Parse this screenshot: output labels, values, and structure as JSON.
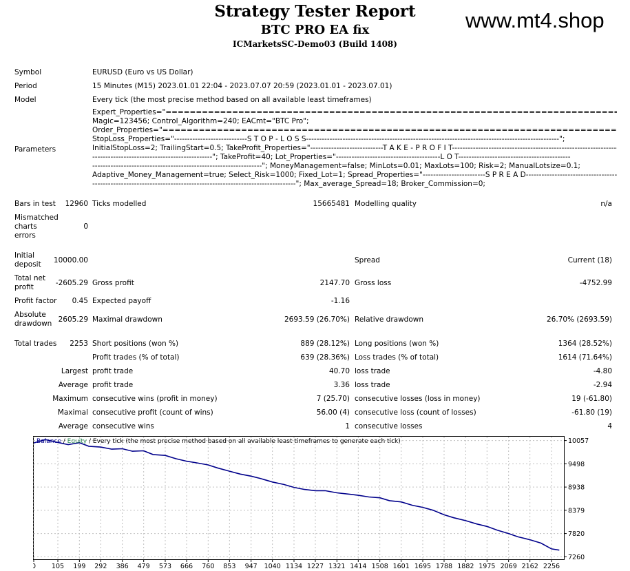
{
  "header": {
    "title": "Strategy Tester Report",
    "ea_name": "BTC PRO EA fix",
    "server": "ICMarketsSC-Demo03 (Build 1408)",
    "watermark": "www.mt4.shop"
  },
  "info": {
    "symbol_label": "Symbol",
    "symbol_value": "EURUSD (Euro vs US Dollar)",
    "period_label": "Period",
    "period_value": "15 Minutes (M15) 2023.01.01 22:04 - 2023.07.07 20:59 (2023.01.01 - 2023.07.01)",
    "model_label": "Model",
    "model_value": "Every tick (the most precise method based on all available least timeframes)",
    "parameters_label": "Parameters",
    "parameters_lines": [
      "Expert_Properties=\"=================================================================================================\";",
      "Magic=123456; Control_Algorithm=240; EACmt=\"BTC Pro\";",
      "Order_Properties=\"=================================================================================================\";",
      "StopLoss_Properties=\"----------------------------S T O P - L O S S-------------------------------------------------------------------------------------------------\";",
      "InitialStopLoss=2; TrailingStart=0.5; TakeProfit_Properties=\"----------------------------T A K E - P R O F I T----------------------------------------------------------------",
      "----------------------------------------------\"; TakeProfit=40; Lot_Properties=\"----------------------------------------L O T-------------------------------------------",
      "-----------------------------------------------------------------\"; MoneyManagement=false; MinLots=0.01; MaxLots=100; Risk=2; ManualLotsize=0.1;",
      "Adaptive_Money_Management=true; Select_Risk=1000; Fixed_Lot=1; Spread_Properties=\"------------------------S P R E A D-------------------------------------------",
      "------------------------------------------------------------------------------\"; Max_average_Spread=18; Broker_Commission=0;"
    ]
  },
  "stats": {
    "bars_label": "Bars in test",
    "bars_value": "12960",
    "ticks_label": "Ticks modelled",
    "ticks_value": "15665481",
    "quality_label": "Modelling quality",
    "quality_value": "n/a",
    "mismatch_l1": "Mismatched",
    "mismatch_l2": "charts",
    "mismatch_l3": "errors",
    "mismatch_value": "0",
    "deposit_l1": "Initial",
    "deposit_l2": "deposit",
    "deposit_value": "10000.00",
    "spread_label": "Spread",
    "spread_value": "Current (18)",
    "netprofit_l1": "Total net",
    "netprofit_l2": "profit",
    "netprofit_value": "-2605.29",
    "grossprofit_label": "Gross profit",
    "grossprofit_value": "2147.70",
    "grossloss_label": "Gross loss",
    "grossloss_value": "-4752.99",
    "pf_label": "Profit factor",
    "pf_value": "0.45",
    "payoff_label": "Expected payoff",
    "payoff_value": "-1.16",
    "absdd_l1": "Absolute",
    "absdd_l2": "drawdown",
    "absdd_value": "2605.29",
    "maxdd_label": "Maximal drawdown",
    "maxdd_value": "2693.59 (26.70%)",
    "reldd_label": "Relative drawdown",
    "reldd_value": "26.70% (2693.59)",
    "trades_label": "Total trades",
    "trades_value": "2253",
    "short_label": "Short positions (won %)",
    "short_value": "889 (28.12%)",
    "long_label": "Long positions (won %)",
    "long_value": "1364 (28.52%)",
    "ptrades_label": "Profit trades (% of total)",
    "ptrades_value": "639 (28.36%)",
    "ltrades_label": "Loss trades (% of total)",
    "ltrades_value": "1614 (71.64%)",
    "largest_label": "Largest",
    "largest_pt_label": "profit trade",
    "largest_pt_value": "40.70",
    "largest_lt_label": "loss trade",
    "largest_lt_value": "-4.80",
    "average_label": "Average",
    "average_pt_label": "profit trade",
    "average_pt_value": "3.36",
    "average_lt_label": "loss trade",
    "average_lt_value": "-2.94",
    "maximum_label": "Maximum",
    "maxcw_label": "consecutive wins (profit in money)",
    "maxcw_value": "7 (25.70)",
    "maxcl_label": "consecutive losses (loss in money)",
    "maxcl_value": "19 (-61.80)",
    "maximal_label": "Maximal",
    "maxcp_label": "consecutive profit (count of wins)",
    "maxcp_value": "56.00 (4)",
    "maxclc_label": "consecutive loss (count of losses)",
    "maxclc_value": "-61.80 (19)",
    "average2_label": "Average",
    "avgcw_label": "consecutive wins",
    "avgcw_value": "1",
    "avgcl_label": "consecutive losses",
    "avgcl_value": "4"
  },
  "chart_data": {
    "type": "line",
    "legend_balance": "Balance",
    "legend_sep": " / ",
    "legend_equity": "Equity",
    "caption": " / Every tick (the most precise method based on all available least timeframes to generate each tick)",
    "x_ticks": [
      "0",
      "105",
      "199",
      "292",
      "386",
      "479",
      "573",
      "666",
      "760",
      "853",
      "947",
      "1040",
      "1134",
      "1227",
      "1321",
      "1414",
      "1508",
      "1601",
      "1695",
      "1788",
      "1882",
      "1975",
      "2069",
      "2162",
      "2256"
    ],
    "y_ticks": [
      "10057",
      "9498",
      "8938",
      "8379",
      "7820",
      "7260"
    ],
    "xlim": [
      0,
      2310
    ],
    "ylim": [
      7200,
      10150
    ],
    "grid": true,
    "colors": {
      "balance": "#00008b",
      "equity": "#2e8b57",
      "grid": "#c0c0c0"
    },
    "series": [
      {
        "name": "Balance",
        "x": [
          0,
          50,
          105,
          150,
          199,
          240,
          292,
          340,
          386,
          430,
          479,
          520,
          573,
          620,
          666,
          710,
          760,
          800,
          853,
          900,
          947,
          990,
          1040,
          1090,
          1134,
          1180,
          1227,
          1270,
          1321,
          1370,
          1414,
          1460,
          1508,
          1550,
          1601,
          1650,
          1695,
          1740,
          1788,
          1830,
          1882,
          1930,
          1975,
          2020,
          2069,
          2110,
          2162,
          2210,
          2256,
          2290
        ],
        "y": [
          10000,
          10080,
          10010,
          9960,
          10005,
          9920,
          9900,
          9850,
          9860,
          9800,
          9810,
          9720,
          9700,
          9620,
          9560,
          9520,
          9470,
          9400,
          9320,
          9250,
          9200,
          9140,
          9060,
          9000,
          8930,
          8880,
          8850,
          8850,
          8800,
          8770,
          8740,
          8700,
          8680,
          8610,
          8580,
          8500,
          8450,
          8380,
          8270,
          8200,
          8130,
          8050,
          7990,
          7900,
          7820,
          7740,
          7670,
          7590,
          7450,
          7420
        ]
      }
    ]
  }
}
